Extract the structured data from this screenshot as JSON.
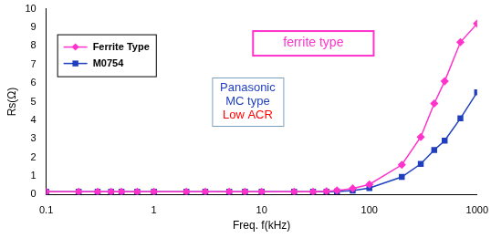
{
  "chart_data": {
    "type": "line",
    "x_label": "Freq. f(kHz)",
    "y_label": "Rs(Ω)",
    "x": [
      0.1,
      0.2,
      0.3,
      0.4,
      0.5,
      0.7,
      1,
      2,
      3,
      5,
      7,
      10,
      20,
      30,
      40,
      50,
      70,
      100,
      200,
      300,
      400,
      500,
      700,
      1000
    ],
    "series": [
      {
        "name": "Ferrite Type",
        "color": "#ff33cc",
        "marker": "diamond",
        "values": [
          0.15,
          0.15,
          0.15,
          0.15,
          0.15,
          0.15,
          0.15,
          0.15,
          0.15,
          0.15,
          0.15,
          0.15,
          0.15,
          0.15,
          0.18,
          0.22,
          0.33,
          0.55,
          1.6,
          3.1,
          4.9,
          6.1,
          8.2,
          9.2
        ]
      },
      {
        "name": "M0754",
        "color": "#1f3fbf",
        "marker": "square",
        "values": [
          0.15,
          0.15,
          0.15,
          0.15,
          0.15,
          0.15,
          0.15,
          0.15,
          0.15,
          0.15,
          0.15,
          0.15,
          0.15,
          0.15,
          0.16,
          0.17,
          0.22,
          0.35,
          0.95,
          1.65,
          2.4,
          2.9,
          4.1,
          5.5
        ]
      }
    ],
    "xlim": [
      0.1,
      1000
    ],
    "xticks": [
      0.1,
      1,
      10,
      100,
      1000
    ],
    "ylim": [
      0,
      10
    ],
    "yticks": [
      0,
      1,
      2,
      3,
      4,
      5,
      6,
      7,
      8,
      9,
      10
    ],
    "log": "x",
    "grid": false,
    "legend": "upper left",
    "annotations": [
      {
        "text": "ferrite type",
        "color": "#ff33cc"
      },
      {
        "text": "Panasonic MC type",
        "color": "#1f3fbf"
      },
      {
        "text": "Low ACR",
        "color": "#ff0000"
      }
    ]
  }
}
